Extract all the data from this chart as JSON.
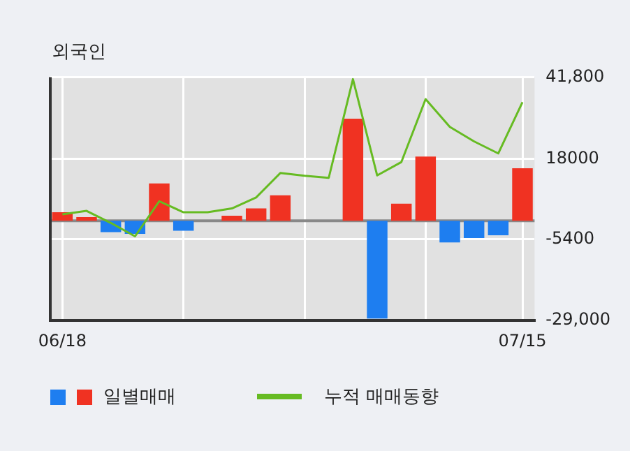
{
  "chart_data": {
    "type": "bar",
    "title": "외국인",
    "categories": [
      "06/18",
      null,
      null,
      null,
      null,
      null,
      null,
      null,
      null,
      null,
      null,
      null,
      null,
      null,
      null,
      null,
      null,
      null,
      null,
      "07/15"
    ],
    "series": [
      {
        "name": "일별매매",
        "colors": [
          "#f03222",
          "#f03222",
          "#1e7ef0",
          "#1e7ef0",
          "#f03222",
          "#1e7ef0",
          "#f03222",
          "#f03222",
          "#f03222",
          "#f03222",
          "#f03222",
          "#f03222",
          "#f03222",
          "#1e7ef0",
          "#f03222",
          "#f03222",
          "#1e7ef0",
          "#1e7ef0",
          "#1e7ef0",
          "#f03222"
        ],
        "values": [
          2500,
          1100,
          -3300,
          -3800,
          10900,
          -2900,
          0,
          1500,
          3600,
          7400,
          0,
          0,
          29700,
          -28400,
          5000,
          18700,
          -6300,
          -5000,
          -4200,
          15300
        ]
      },
      {
        "name": "누적 매매동향",
        "type": "line",
        "color": "#66bb22",
        "values": [
          1900,
          2900,
          -600,
          -4500,
          5700,
          2500,
          2500,
          3600,
          6800,
          13900,
          13100,
          12500,
          41200,
          13200,
          17100,
          35400,
          27300,
          23100,
          19600,
          34500
        ]
      }
    ],
    "ylim": [
      -29000,
      41800
    ],
    "yticks": [
      {
        "value": 41800,
        "label": "41,800"
      },
      {
        "value": 18000,
        "label": "18000"
      },
      {
        "value": -5400,
        "label": "-5400"
      },
      {
        "value": -29000,
        "label": "-29,000"
      }
    ],
    "ref_lines": [
      {
        "axis": "y",
        "value": 0,
        "color": "#888888"
      }
    ],
    "grid": true,
    "legend": "bottom",
    "marker": "none"
  }
}
